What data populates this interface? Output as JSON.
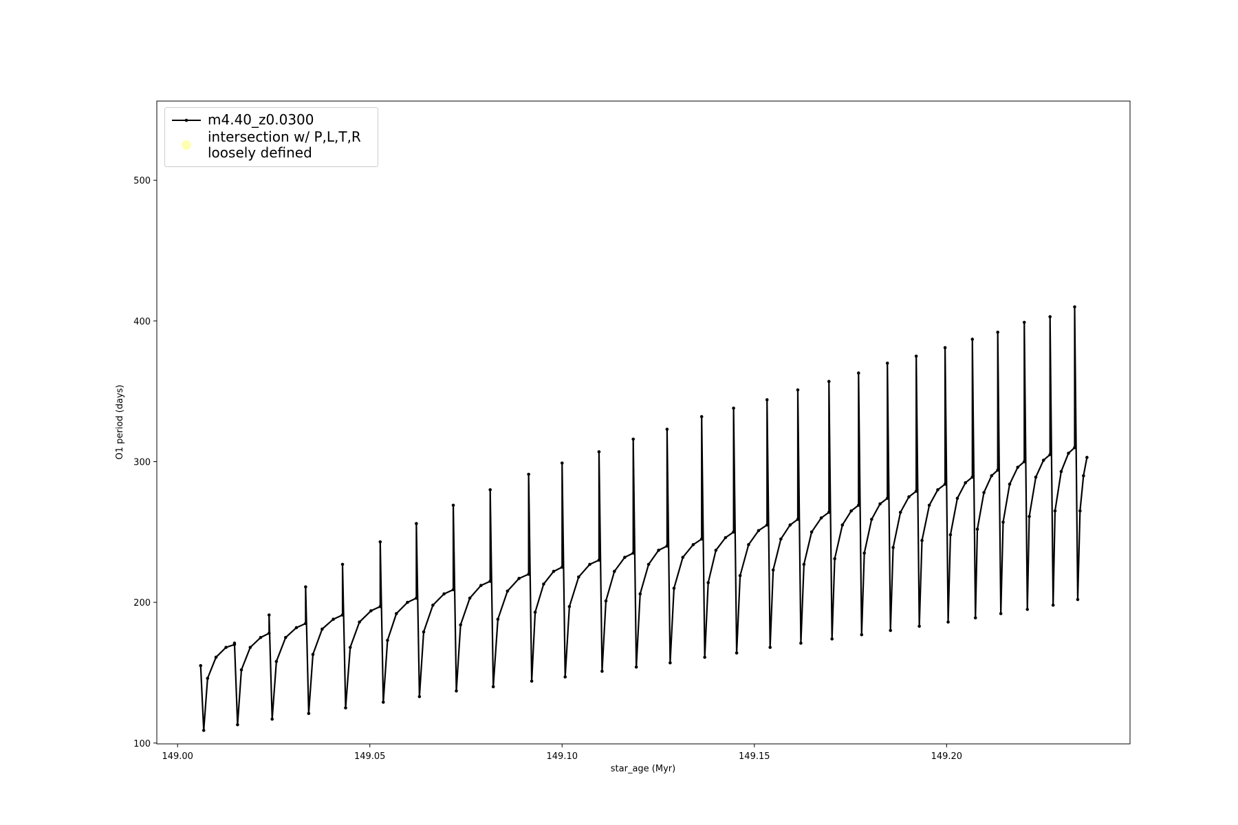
{
  "chart_data": {
    "type": "line",
    "xlabel": "star_age (Myr)",
    "ylabel": "O1 period (days)",
    "xlim": [
      148.9946,
      149.2477
    ],
    "ylim": [
      99.4,
      556.3
    ],
    "xticks": [
      {
        "value": 149.0,
        "label": "149.00"
      },
      149.05,
      {
        "value": 149.1,
        "label": "149.10"
      },
      149.15,
      {
        "value": 149.2,
        "label": "149.20"
      }
    ],
    "yticks": [
      100,
      200,
      300,
      400,
      500
    ],
    "grid": false,
    "legend": "upper left",
    "series": [
      {
        "name": "m4.40_z0.0300",
        "color": "#000000",
        "x": [
          149.006,
          149.0068,
          149.0078,
          149.01,
          149.0126,
          149.0148,
          149.0148,
          149.0156,
          149.0166,
          149.0189,
          149.0216,
          149.0238,
          149.0238,
          149.0246,
          149.0257,
          149.0281,
          149.0309,
          149.0333,
          149.0333,
          149.0341,
          149.0352,
          149.0376,
          149.0405,
          149.0429,
          149.0429,
          149.0437,
          149.0449,
          149.0473,
          149.0503,
          149.0527,
          149.0527,
          149.0535,
          149.0546,
          149.0569,
          149.0598,
          149.0621,
          149.0621,
          149.0629,
          149.064,
          149.0664,
          149.0693,
          149.0717,
          149.0717,
          149.0725,
          149.0736,
          149.076,
          149.0789,
          149.0813,
          149.0813,
          149.0821,
          149.0833,
          149.0858,
          149.0888,
          149.0913,
          149.0913,
          149.0921,
          149.093,
          149.0952,
          149.0978,
          149.1,
          149.1,
          149.1008,
          149.1019,
          149.1043,
          149.1072,
          149.1096,
          149.1096,
          149.1104,
          149.1114,
          149.1136,
          149.1163,
          149.1185,
          149.1185,
          149.1193,
          149.1203,
          149.1225,
          149.1251,
          149.1273,
          149.1273,
          149.1281,
          149.1291,
          149.1314,
          149.1341,
          149.1363,
          149.1363,
          149.1371,
          149.138,
          149.14,
          149.1425,
          149.1446,
          149.1446,
          149.1454,
          149.1463,
          149.1485,
          149.1511,
          149.1533,
          149.1533,
          149.1541,
          149.1549,
          149.1569,
          149.1593,
          149.1613,
          149.1613,
          149.1621,
          149.1629,
          149.1649,
          149.1674,
          149.1694,
          149.1694,
          149.1702,
          149.1709,
          149.1729,
          149.1752,
          149.1771,
          149.1771,
          149.1779,
          149.1786,
          149.1805,
          149.1827,
          149.1846,
          149.1846,
          149.1854,
          149.1861,
          149.188,
          149.1902,
          149.1921,
          149.1921,
          149.1929,
          149.1936,
          149.1955,
          149.1977,
          149.1996,
          149.1996,
          149.2004,
          149.201,
          149.2028,
          149.2049,
          149.2067,
          149.2067,
          149.2075,
          149.208,
          149.2097,
          149.2117,
          149.2133,
          149.2133,
          149.2141,
          149.2147,
          149.2164,
          149.2185,
          149.2202,
          149.2202,
          149.221,
          149.2215,
          149.2232,
          149.2252,
          149.2269,
          149.2269,
          149.2277,
          149.2282,
          149.2298,
          149.2317,
          149.2333,
          149.2333,
          149.2341,
          149.2347,
          149.2356,
          149.2365
        ],
        "values": [
          155,
          109,
          146,
          161,
          168,
          170,
          171,
          113,
          152,
          168,
          175,
          178,
          191,
          117,
          158,
          175,
          182,
          185,
          211,
          121,
          163,
          181,
          188,
          191,
          227,
          125,
          168,
          186,
          194,
          197,
          243,
          129,
          173,
          192,
          200,
          203,
          256,
          133,
          179,
          198,
          206,
          209,
          269,
          137,
          184,
          203,
          212,
          215,
          280,
          140,
          188,
          208,
          217,
          220,
          291,
          144,
          193,
          213,
          222,
          225,
          299,
          147,
          197,
          218,
          227,
          230,
          307,
          151,
          201,
          222,
          232,
          235,
          316,
          154,
          206,
          227,
          237,
          240,
          323,
          157,
          210,
          232,
          241,
          245,
          332,
          161,
          214,
          237,
          246,
          250,
          338,
          164,
          219,
          241,
          251,
          255,
          344,
          168,
          223,
          245,
          255,
          259,
          351,
          171,
          227,
          250,
          260,
          264,
          357,
          174,
          231,
          255,
          265,
          269,
          363,
          177,
          235,
          259,
          270,
          274,
          370,
          180,
          239,
          264,
          275,
          279,
          375,
          183,
          244,
          269,
          280,
          284,
          381,
          186,
          248,
          274,
          285,
          289,
          387,
          189,
          252,
          278,
          290,
          294,
          392,
          192,
          257,
          284,
          296,
          300,
          399,
          195,
          261,
          289,
          301,
          305,
          403,
          198,
          265,
          293,
          306,
          310,
          410,
          202,
          265,
          290,
          303
        ]
      },
      {
        "name": "intersection w/ P,L,T,R\nloosely defined",
        "color": "#ffffb3",
        "x": [],
        "values": []
      }
    ]
  }
}
